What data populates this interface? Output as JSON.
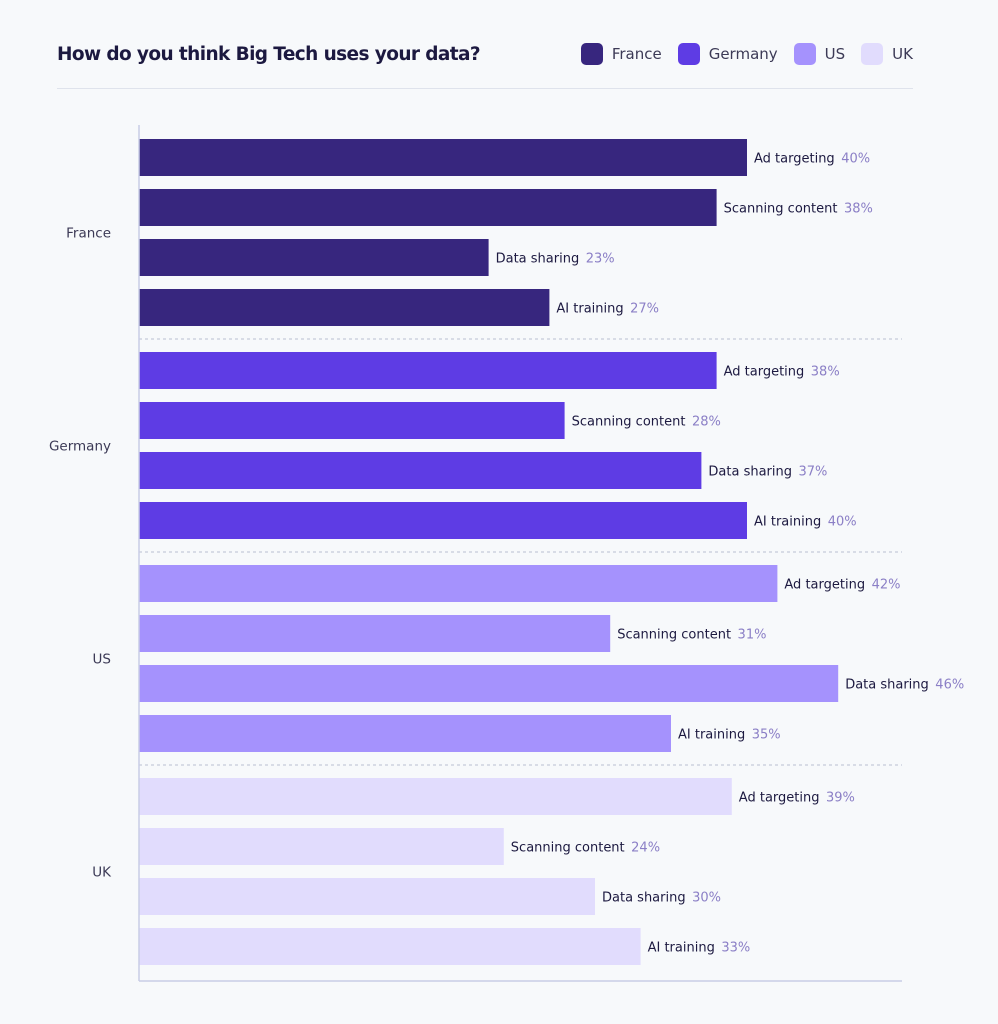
{
  "chart_data": {
    "type": "bar",
    "orientation": "horizontal",
    "title": "How do you think Big Tech uses your data?",
    "xlabel": "",
    "ylabel": "",
    "grid": false,
    "legend_position": "top-right",
    "legend": [
      {
        "name": "France",
        "color": "#37267e"
      },
      {
        "name": "Germany",
        "color": "#5e3ce4"
      },
      {
        "name": "US",
        "color": "#a592fd"
      },
      {
        "name": "UK",
        "color": "#e1dcfd"
      }
    ],
    "groups": [
      {
        "name": "France",
        "color": "#37267e",
        "bars": [
          {
            "label": "Ad targeting",
            "value": 40,
            "display": "40%"
          },
          {
            "label": "Scanning content",
            "value": 38,
            "display": "38%"
          },
          {
            "label": "Data sharing",
            "value": 23,
            "display": "23%"
          },
          {
            "label": "AI training",
            "value": 27,
            "display": "27%"
          }
        ]
      },
      {
        "name": "Germany",
        "color": "#5e3ce4",
        "bars": [
          {
            "label": "Ad targeting",
            "value": 38,
            "display": "38%"
          },
          {
            "label": "Scanning content",
            "value": 28,
            "display": "28%"
          },
          {
            "label": "Data sharing",
            "value": 37,
            "display": "37%"
          },
          {
            "label": "AI training",
            "value": 40,
            "display": "40%"
          }
        ]
      },
      {
        "name": "US",
        "color": "#a592fd",
        "bars": [
          {
            "label": "Ad targeting",
            "value": 42,
            "display": "42%"
          },
          {
            "label": "Scanning content",
            "value": 31,
            "display": "31%"
          },
          {
            "label": "Data sharing",
            "value": 46,
            "display": "46%"
          },
          {
            "label": "AI training",
            "value": 35,
            "display": "35%"
          }
        ]
      },
      {
        "name": "UK",
        "color": "#e1dcfd",
        "bars": [
          {
            "label": "Ad targeting",
            "value": 39,
            "display": "39%"
          },
          {
            "label": "Scanning content",
            "value": 24,
            "display": "24%"
          },
          {
            "label": "Data sharing",
            "value": 30,
            "display": "30%"
          },
          {
            "label": "AI training",
            "value": 33,
            "display": "33%"
          }
        ]
      }
    ],
    "label_color": "#1c1940",
    "value_color": "#8b7fc6"
  }
}
